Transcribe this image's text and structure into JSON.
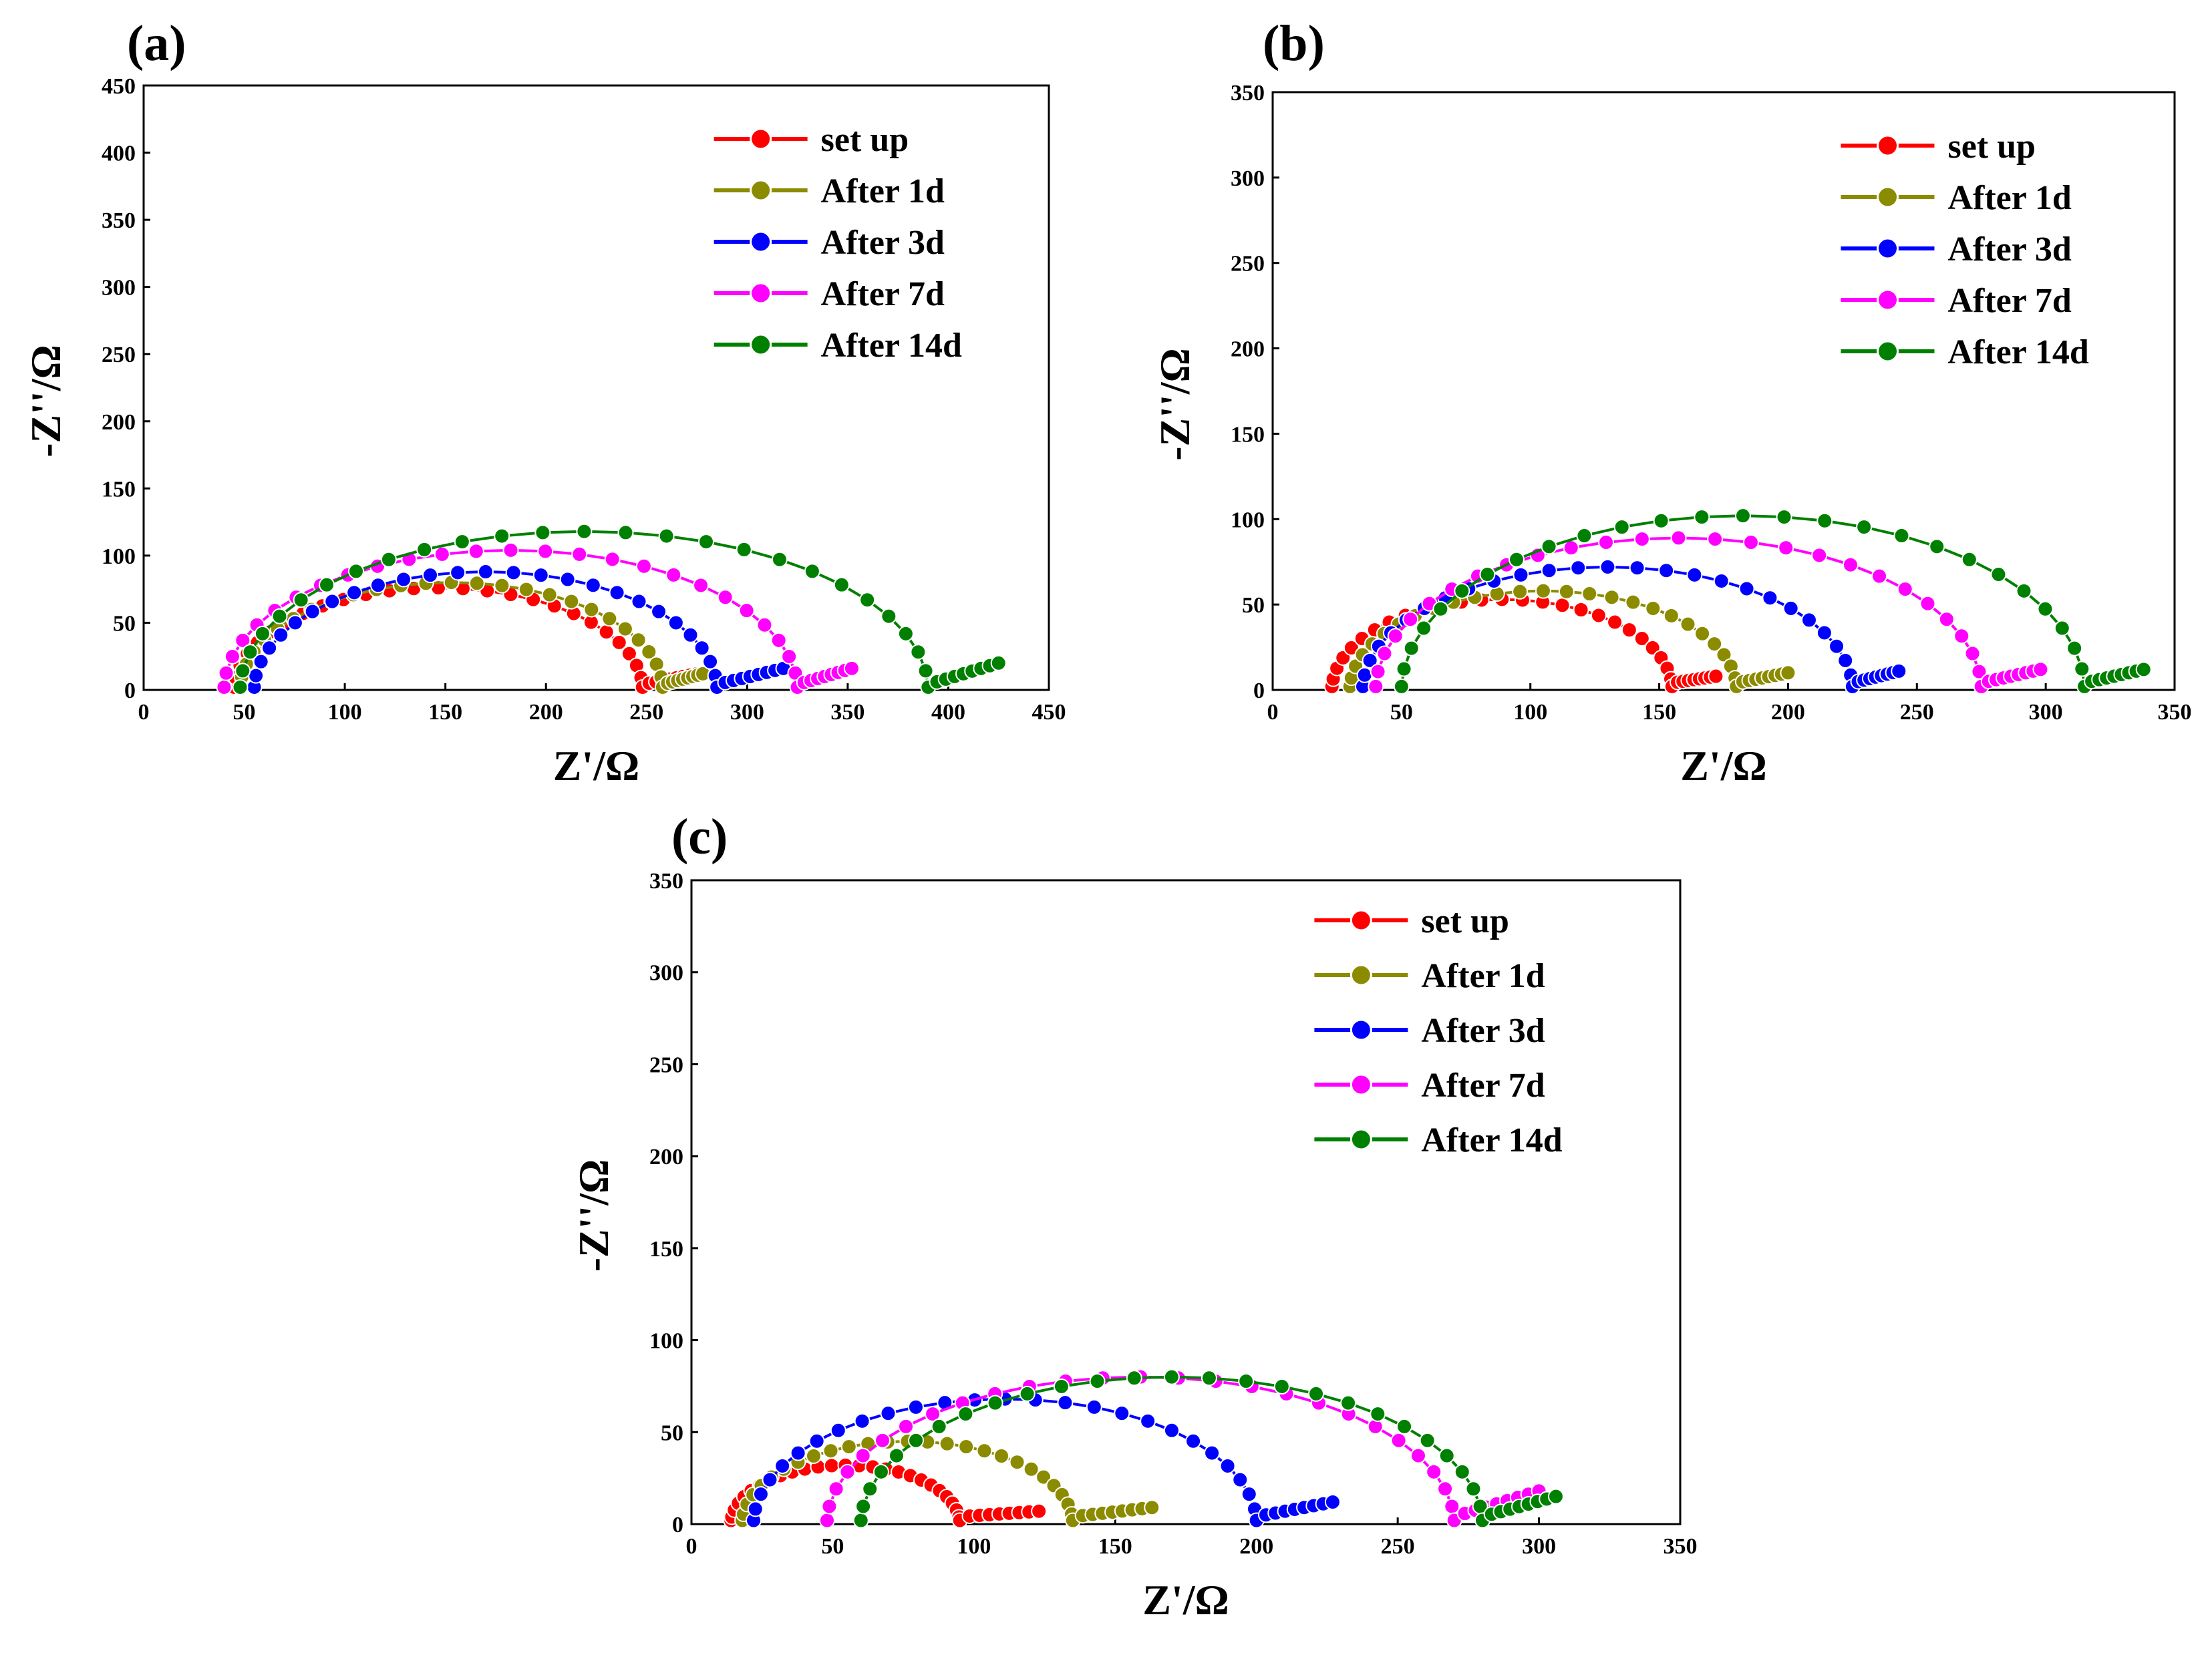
{
  "chart_data": [
    {
      "panel": "(a)",
      "type": "scatter",
      "xlabel": "Z'/Ω",
      "ylabel": "-Z''/Ω",
      "xlim": [
        0,
        450
      ],
      "ylim": [
        0,
        450
      ],
      "xticks": [
        0,
        50,
        100,
        150,
        200,
        250,
        300,
        350,
        400,
        450
      ],
      "yticks": [
        0,
        50,
        100,
        150,
        200,
        250,
        300,
        350,
        400,
        450
      ],
      "legend_position": "top-right",
      "series": [
        {
          "name": "set up",
          "color": "#ff0000",
          "start": 45,
          "end": 248,
          "height": 76,
          "tail_end": 275,
          "tail_height": 12
        },
        {
          "name": "After 1d",
          "color": "#8b8b00",
          "start": 48,
          "end": 258,
          "height": 80,
          "tail_end": 278,
          "tail_height": 12
        },
        {
          "name": "After 3d",
          "color": "#0000ff",
          "start": 55,
          "end": 285,
          "height": 88,
          "tail_end": 318,
          "tail_height": 16
        },
        {
          "name": "After 7d",
          "color": "#ff00ff",
          "start": 40,
          "end": 325,
          "height": 104,
          "tail_end": 352,
          "tail_height": 16
        },
        {
          "name": "After 14d",
          "color": "#008000",
          "start": 48,
          "end": 390,
          "height": 118,
          "tail_end": 425,
          "tail_height": 20
        }
      ]
    },
    {
      "panel": "(b)",
      "type": "scatter",
      "xlabel": "Z'/Ω",
      "ylabel": "-Z''/Ω",
      "xlim": [
        0,
        350
      ],
      "ylim": [
        0,
        350
      ],
      "xticks": [
        0,
        50,
        100,
        150,
        200,
        250,
        300,
        350
      ],
      "yticks": [
        0,
        50,
        100,
        150,
        200,
        250,
        300,
        350
      ],
      "legend_position": "top-right",
      "series": [
        {
          "name": "set up",
          "color": "#ff0000",
          "start": 23,
          "end": 155,
          "height": 53,
          "tail_end": 172,
          "tail_height": 8
        },
        {
          "name": "After 1d",
          "color": "#8b8b00",
          "start": 30,
          "end": 180,
          "height": 58,
          "tail_end": 200,
          "tail_height": 10
        },
        {
          "name": "After 3d",
          "color": "#0000ff",
          "start": 35,
          "end": 225,
          "height": 72,
          "tail_end": 243,
          "tail_height": 11
        },
        {
          "name": "After 7d",
          "color": "#ff00ff",
          "start": 40,
          "end": 275,
          "height": 89,
          "tail_end": 298,
          "tail_height": 12
        },
        {
          "name": "After 14d",
          "color": "#008000",
          "start": 50,
          "end": 315,
          "height": 102,
          "tail_end": 338,
          "tail_height": 12
        }
      ]
    },
    {
      "panel": "(c)",
      "type": "scatter",
      "xlabel": "Z'/Ω",
      "ylabel": "-Z''/Ω",
      "xlim": [
        0,
        350
      ],
      "ylim": [
        0,
        350
      ],
      "xticks": [
        0,
        50,
        100,
        150,
        200,
        250,
        300,
        350
      ],
      "yticks": [
        0,
        50,
        100,
        150,
        200,
        250,
        300,
        350
      ],
      "legend_position": "top-right",
      "series": [
        {
          "name": "set up",
          "color": "#ff0000",
          "start": 14,
          "end": 95,
          "height": 32,
          "tail_end": 123,
          "tail_height": 7
        },
        {
          "name": "After 1d",
          "color": "#8b8b00",
          "start": 18,
          "end": 135,
          "height": 45,
          "tail_end": 163,
          "tail_height": 9
        },
        {
          "name": "After 3d",
          "color": "#0000ff",
          "start": 22,
          "end": 200,
          "height": 68,
          "tail_end": 227,
          "tail_height": 12
        },
        {
          "name": "After 7d",
          "color": "#ff00ff",
          "start": 48,
          "end": 270,
          "height": 80,
          "tail_end": 300,
          "tail_height": 18
        },
        {
          "name": "After 14d",
          "color": "#008000",
          "start": 60,
          "end": 280,
          "height": 80,
          "tail_end": 306,
          "tail_height": 15
        }
      ]
    }
  ]
}
